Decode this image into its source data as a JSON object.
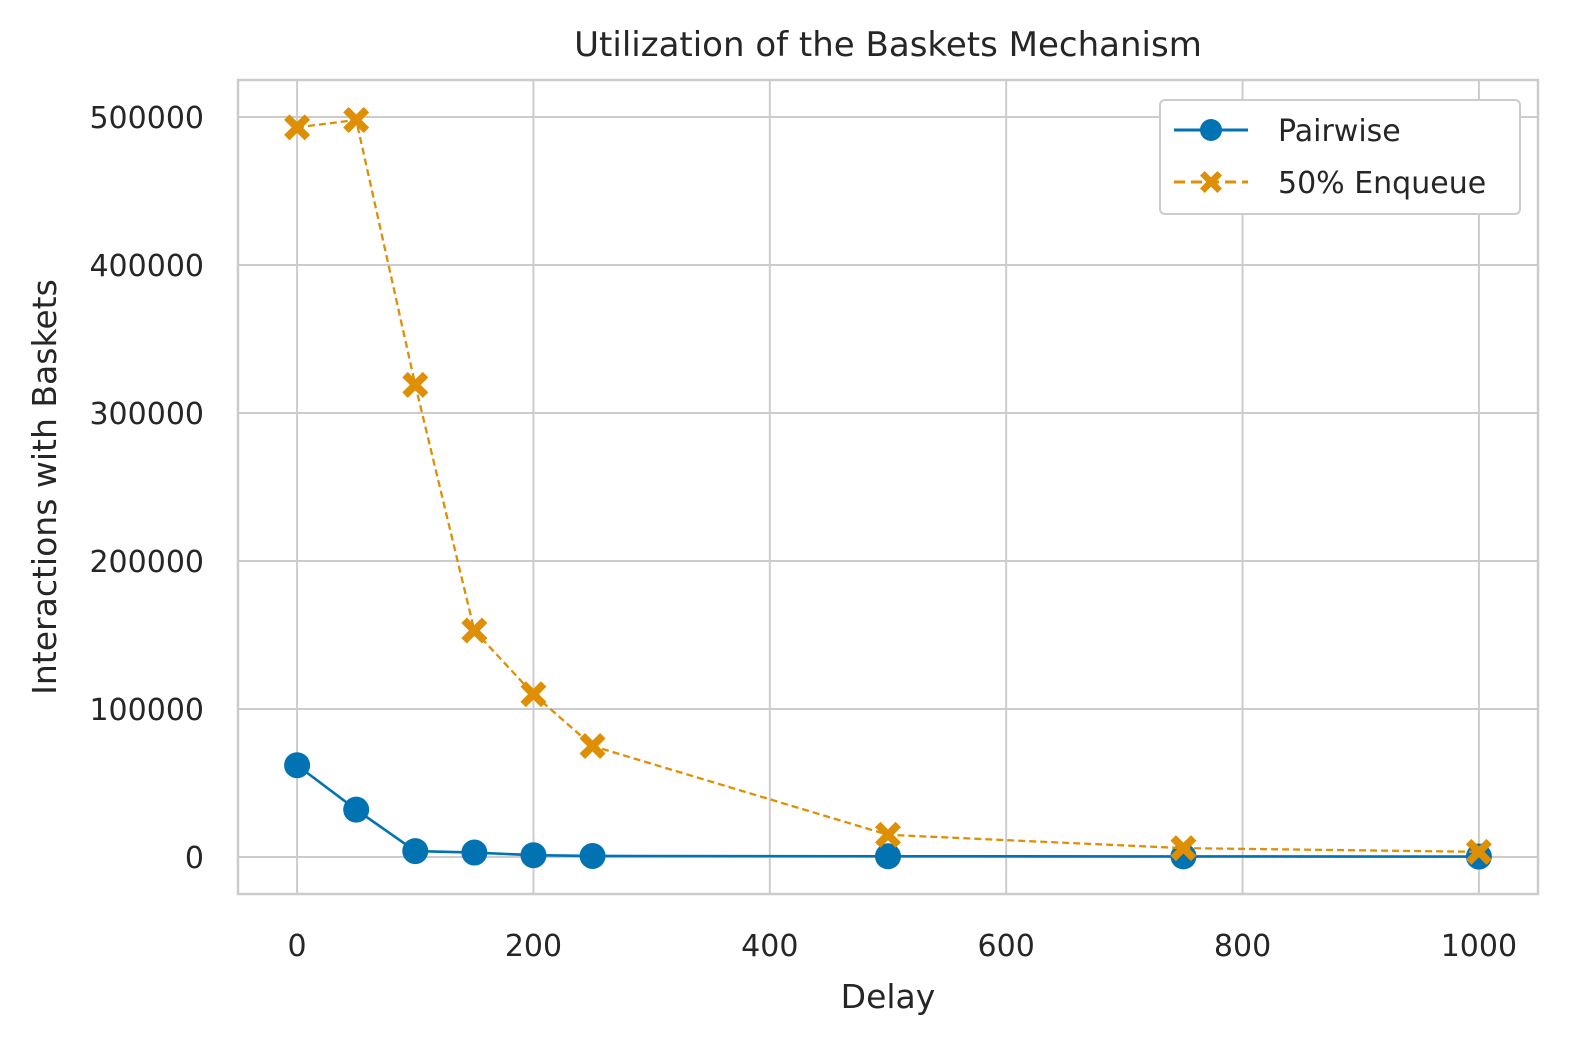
{
  "chart_data": {
    "type": "line",
    "title": "Utilization of the Baskets Mechanism",
    "xlabel": "Delay",
    "ylabel": "Interactions with Baskets",
    "xlim": [
      -50,
      1050
    ],
    "ylim": [
      -25000,
      525000
    ],
    "xticks": [
      0,
      200,
      400,
      600,
      800,
      1000
    ],
    "yticks": [
      0,
      100000,
      200000,
      300000,
      400000,
      500000
    ],
    "grid": true,
    "legend_position": "top-right",
    "x": [
      0,
      50,
      100,
      150,
      200,
      250,
      500,
      750,
      1000
    ],
    "series": [
      {
        "name": "Pairwise",
        "color": "#0173b2",
        "marker": "circle",
        "linestyle": "solid",
        "values": [
          62000,
          32000,
          4000,
          3000,
          1200,
          700,
          500,
          400,
          300
        ]
      },
      {
        "name": "50% Enqueue",
        "color": "#de8f05",
        "marker": "x-filled",
        "linestyle": "dashed",
        "values": [
          493000,
          498000,
          319000,
          153000,
          110000,
          75000,
          15000,
          6000,
          3500
        ]
      }
    ]
  }
}
